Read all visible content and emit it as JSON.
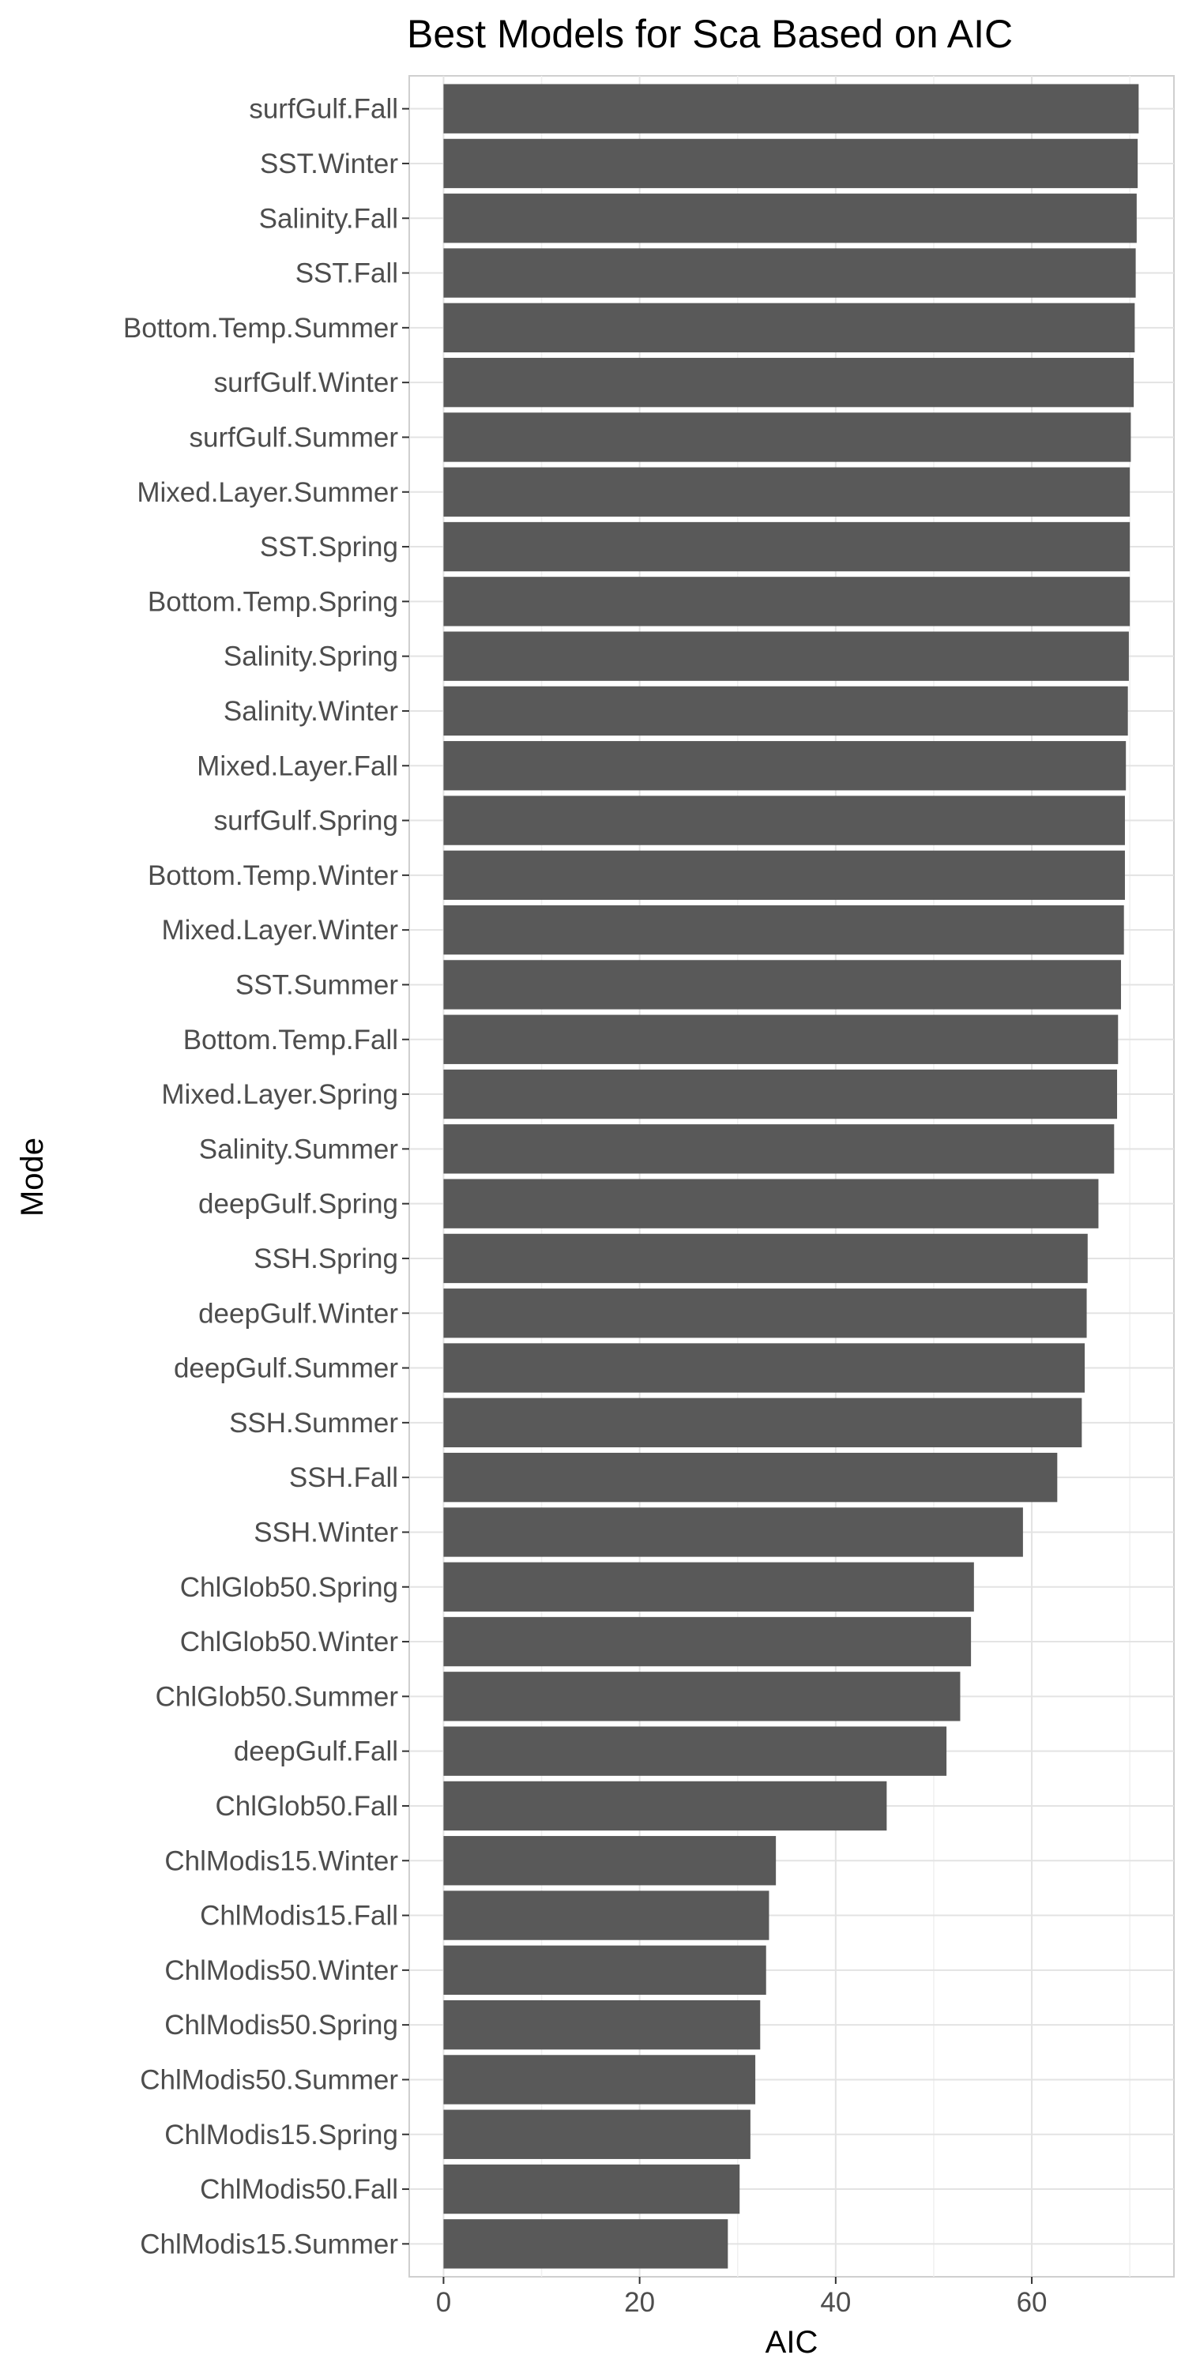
{
  "chart_data": {
    "type": "bar",
    "orientation": "horizontal",
    "title": "Best Models for Sca Based on AIC",
    "xlabel": "AIC",
    "ylabel": "Mode",
    "xlim": [
      -3.5,
      74.5
    ],
    "xticks": [
      0,
      20,
      40,
      60
    ],
    "grid": true,
    "legend": "none",
    "bar_color": "#595959",
    "categories": [
      "surfGulf.Fall",
      "SST.Winter",
      "Salinity.Fall",
      "SST.Fall",
      "Bottom.Temp.Summer",
      "surfGulf.Winter",
      "surfGulf.Summer",
      "Mixed.Layer.Summer",
      "SST.Spring",
      "Bottom.Temp.Spring",
      "Salinity.Spring",
      "Salinity.Winter",
      "Mixed.Layer.Fall",
      "surfGulf.Spring",
      "Bottom.Temp.Winter",
      "Mixed.Layer.Winter",
      "SST.Summer",
      "Bottom.Temp.Fall",
      "Mixed.Layer.Spring",
      "Salinity.Summer",
      "deepGulf.Spring",
      "SSH.Spring",
      "deepGulf.Winter",
      "deepGulf.Summer",
      "SSH.Summer",
      "SSH.Fall",
      "SSH.Winter",
      "ChlGlob50.Spring",
      "ChlGlob50.Winter",
      "ChlGlob50.Summer",
      "deepGulf.Fall",
      "ChlGlob50.Fall",
      "ChlModis15.Winter",
      "ChlModis15.Fall",
      "ChlModis50.Winter",
      "ChlModis50.Spring",
      "ChlModis50.Summer",
      "ChlModis15.Spring",
      "ChlModis50.Fall",
      "ChlModis15.Summer"
    ],
    "values": [
      70.9,
      70.8,
      70.7,
      70.6,
      70.5,
      70.4,
      70.1,
      70.0,
      70.0,
      70.0,
      69.9,
      69.8,
      69.6,
      69.5,
      69.5,
      69.4,
      69.1,
      68.8,
      68.7,
      68.4,
      66.8,
      65.7,
      65.6,
      65.4,
      65.1,
      62.6,
      59.1,
      54.1,
      53.8,
      52.7,
      51.3,
      45.2,
      33.9,
      33.2,
      32.9,
      32.3,
      31.8,
      31.3,
      30.2,
      29.0
    ]
  }
}
